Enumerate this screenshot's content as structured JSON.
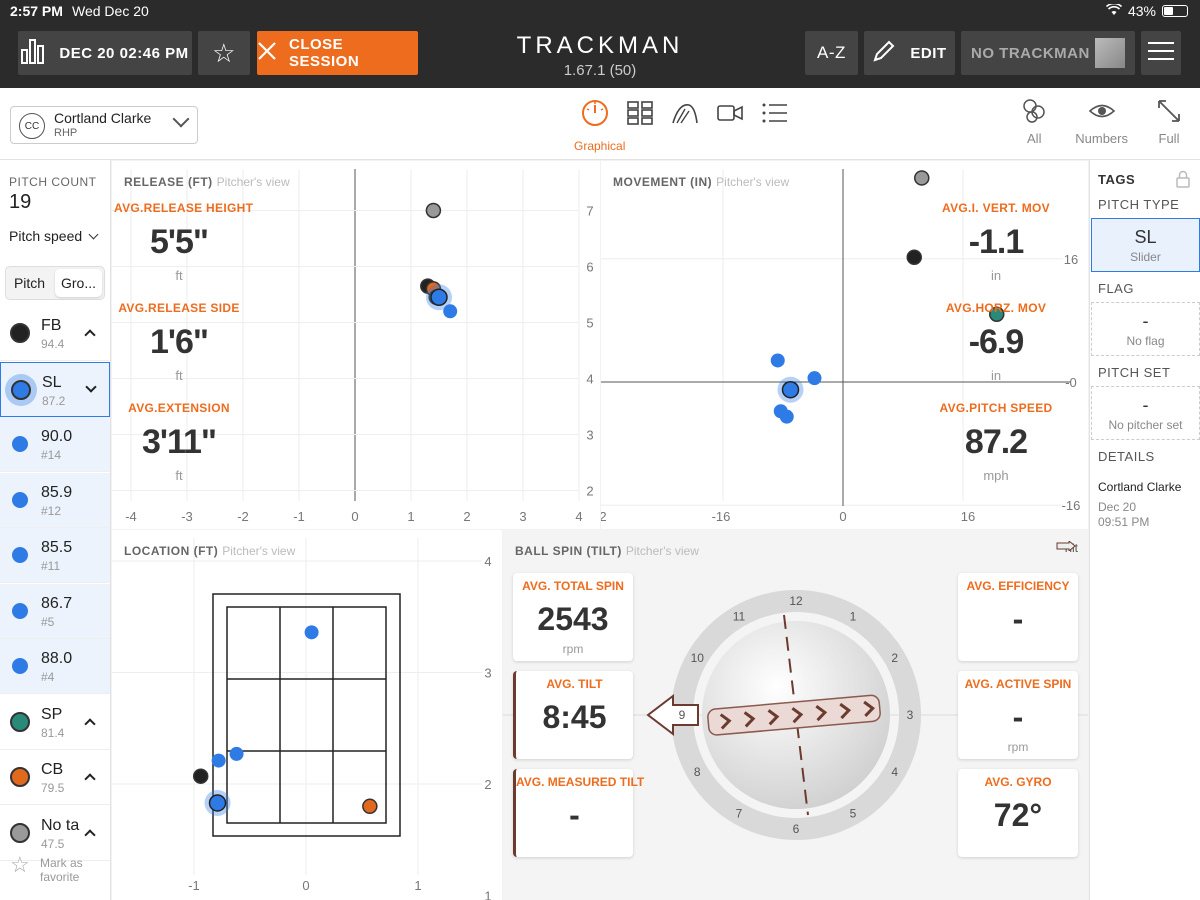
{
  "status": {
    "time": "2:57 PM",
    "date": "Wed Dec 20",
    "battery": "43%"
  },
  "topbar": {
    "session_label": "DEC 20 02:46 PM",
    "close_label": "CLOSE SESSION",
    "brand": "TRACKMAN",
    "version": "1.67.1 (50)",
    "az_label": "A-Z",
    "edit_label": "EDIT",
    "device_label": "NO TRACKMAN"
  },
  "pitcher": {
    "initials": "CC",
    "name": "Cortland Clarke",
    "hand": "RHP"
  },
  "views": {
    "active_label": "Graphical"
  },
  "right_tools": {
    "all": "All",
    "numbers": "Numbers",
    "full": "Full"
  },
  "sidebar": {
    "pitch_count_label": "PITCH COUNT",
    "pitch_count": "19",
    "metric_select": "Pitch speed",
    "seg_pitch": "Pitch",
    "seg_group": "Gro...",
    "groups": [
      {
        "label": "FB",
        "value": "94.4",
        "color": "#222222"
      },
      {
        "label": "SL",
        "value": "87.2",
        "color": "#2f7be6"
      },
      {
        "label": "90.0",
        "value": "#14",
        "color": "#2f7be6"
      },
      {
        "label": "85.9",
        "value": "#12",
        "color": "#2f7be6"
      },
      {
        "label": "85.5",
        "value": "#11",
        "color": "#2f7be6"
      },
      {
        "label": "86.7",
        "value": "#5",
        "color": "#2f7be6"
      },
      {
        "label": "88.0",
        "value": "#4",
        "color": "#2f7be6"
      },
      {
        "label": "SP",
        "value": "81.4",
        "color": "#2a8a7a"
      },
      {
        "label": "CB",
        "value": "79.5",
        "color": "#e0691e"
      },
      {
        "label": "No ta",
        "value": "47.5",
        "color": "#999999"
      }
    ],
    "favorite_label": "Mark as favorite"
  },
  "release": {
    "title": "RELEASE (FT)",
    "subtitle": "Pitcher's view",
    "stats": [
      {
        "label": "AVG.RELEASE HEIGHT",
        "value": "5'5\"",
        "unit": "ft"
      },
      {
        "label": "AVG.RELEASE SIDE",
        "value": "1'6\"",
        "unit": "ft"
      },
      {
        "label": "AVG.EXTENSION",
        "value": "3'11\"",
        "unit": "ft"
      }
    ],
    "x_ticks": [
      "-4",
      "-3",
      "-2",
      "-1",
      "0",
      "1",
      "2",
      "3",
      "4"
    ],
    "y_ticks": [
      "7",
      "6",
      "5",
      "4",
      "3",
      "2"
    ],
    "points": [
      {
        "x": 1.4,
        "y": 7.0,
        "color": "#999999"
      },
      {
        "x": 1.3,
        "y": 5.65,
        "color": "#222222"
      },
      {
        "x": 1.4,
        "y": 5.6,
        "color": "#e0691e"
      },
      {
        "x": 1.45,
        "y": 5.45,
        "color": "#2a8a7a"
      },
      {
        "x": 1.5,
        "y": 5.45,
        "color": "#2f7be6",
        "ring": true
      },
      {
        "x": 1.7,
        "y": 5.2,
        "color": "#2f7be6"
      }
    ]
  },
  "movement": {
    "title": "MOVEMENT (IN)",
    "subtitle": "Pitcher's view",
    "stats": [
      {
        "label": "AVG.I. VERT. MOV",
        "value": "-1.1",
        "unit": "in"
      },
      {
        "label": "AVG.HORZ. MOV",
        "value": "-6.9",
        "unit": "in"
      },
      {
        "label": "AVG.PITCH SPEED",
        "value": "87.2",
        "unit": "mph"
      }
    ],
    "x_ticks": [
      "2",
      "-16",
      "0",
      "16"
    ],
    "y_ticks": [
      "16",
      "-0",
      "-16"
    ],
    "points": [
      {
        "x": 10.5,
        "y": 26.5,
        "color": "#999999"
      },
      {
        "x": 9.5,
        "y": 16.2,
        "color": "#222222"
      },
      {
        "x": 20.5,
        "y": 8.8,
        "color": "#2a8a7a"
      },
      {
        "x": -8.7,
        "y": 2.8,
        "color": "#2f7be6"
      },
      {
        "x": -3.8,
        "y": 0.5,
        "color": "#2f7be6"
      },
      {
        "x": -7.0,
        "y": -1.0,
        "color": "#2f7be6",
        "ring": true
      },
      {
        "x": -8.3,
        "y": -3.8,
        "color": "#2f7be6"
      },
      {
        "x": -7.5,
        "y": -4.5,
        "color": "#2f7be6"
      }
    ]
  },
  "location": {
    "title": "LOCATION (FT)",
    "subtitle": "Pitcher's view",
    "x_ticks": [
      "-1",
      "0",
      "1"
    ],
    "y_ticks": [
      "4",
      "3",
      "2",
      "1"
    ],
    "points": [
      {
        "x": 0.05,
        "y": 3.36,
        "color": "#2f7be6"
      },
      {
        "x": -0.62,
        "y": 2.27,
        "color": "#2f7be6"
      },
      {
        "x": -0.78,
        "y": 2.21,
        "color": "#2f7be6"
      },
      {
        "x": -0.94,
        "y": 2.07,
        "color": "#222222"
      },
      {
        "x": -0.79,
        "y": 1.83,
        "color": "#2f7be6",
        "ring": true
      },
      {
        "x": 0.57,
        "y": 1.8,
        "color": "#e0691e"
      }
    ]
  },
  "spin": {
    "title": "BALL SPIN (TILT)",
    "subtitle": "Pitcher's view",
    "tilt_legend": "Tilt",
    "left_cards": [
      {
        "label": "AVG. TOTAL SPIN",
        "value": "2543",
        "unit": "rpm"
      },
      {
        "label": "AVG. TILT",
        "value": "8:45",
        "unit": ""
      },
      {
        "label": "AVG. MEASURED TILT",
        "value": "-",
        "unit": ""
      }
    ],
    "right_cards": [
      {
        "label": "AVG. EFFICIENCY",
        "value": "-",
        "unit": ""
      },
      {
        "label": "AVG. ACTIVE SPIN",
        "value": "-",
        "unit": "rpm"
      },
      {
        "label": "AVG. GYRO",
        "value": "72°",
        "unit": ""
      }
    ],
    "clock": [
      "12",
      "1",
      "2",
      "3",
      "4",
      "5",
      "6",
      "7",
      "8",
      "9",
      "10",
      "11"
    ]
  },
  "tags": {
    "title": "TAGS",
    "pitch_type_label": "PITCH TYPE",
    "pitch_type": "SL",
    "pitch_type_name": "Slider",
    "flag_label": "FLAG",
    "flag_value": "-",
    "flag_sub": "No flag",
    "set_label": "PITCH SET",
    "set_value": "-",
    "set_sub": "No pitcher set",
    "details_label": "DETAILS",
    "details_name": "Cortland Clarke",
    "details_date": "Dec 20",
    "details_time": "09:51 PM"
  },
  "colors": {
    "accent": "#ee6c1e",
    "selected": "#2f7be6",
    "bar": "#2b2b2b"
  }
}
